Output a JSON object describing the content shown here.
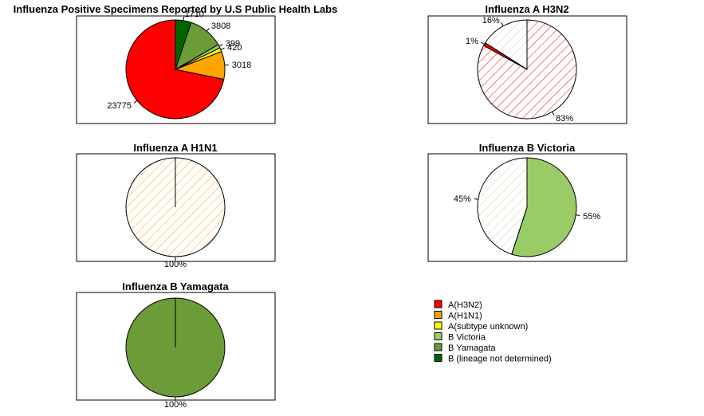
{
  "colors": {
    "A(H3N2)": "#ff0000",
    "A(H1N1)": "#ffa500",
    "A(subtype unknown)": "#ffff00",
    "B Victoria": "#99cc66",
    "B Yamagata": "#6b9c38",
    "B (lineage not determined)": "#006400"
  },
  "legend": {
    "items": [
      "A(H3N2)",
      "A(H1N1)",
      "A(subtype unknown)",
      "B Victoria",
      "B Yamagata",
      "B (lineage not determined)"
    ]
  },
  "chart_data": [
    {
      "type": "pie",
      "title": "Influenza Positive Specimens Reported by U.S Public Health Labs",
      "labels": [
        "A(H3N2)",
        "A(H1N1)",
        "A(subtype unknown)",
        "B Victoria",
        "B Yamagata",
        "B (lineage not determined)"
      ],
      "values": [
        23775,
        3018,
        420,
        399,
        3808,
        1710
      ],
      "slice_labels": [
        "23775",
        "3018",
        "420",
        "399",
        "3808",
        "1710"
      ],
      "fill": "solid"
    },
    {
      "type": "pie",
      "title": "Influenza A H3N2",
      "labels": [
        "Influenza A H3N2",
        "A(H3N2) share 1%",
        "Influenza A H3N2 other"
      ],
      "values": [
        83,
        1,
        16
      ],
      "slice_labels": [
        "83%",
        "1%",
        "16%"
      ],
      "slice_colors": [
        "#ff0000",
        "#ff0000",
        "#ffffff"
      ],
      "slice_fill": [
        "hatch",
        "solid",
        "hatch"
      ],
      "fill": "mixed"
    },
    {
      "type": "pie",
      "title": "Influenza A H1N1",
      "labels": [
        "Influenza A H1N1"
      ],
      "values": [
        100
      ],
      "slice_labels": [
        "100%"
      ],
      "slice_colors": [
        "#ffa500"
      ],
      "slice_fill": [
        "hatch"
      ],
      "fill": "hatch"
    },
    {
      "type": "pie",
      "title": "Influenza B Victoria",
      "labels": [
        "B Victoria 55%",
        "B Victoria 45%"
      ],
      "values": [
        55,
        45
      ],
      "slice_labels": [
        "55%",
        "45%"
      ],
      "slice_colors": [
        "#99cc66",
        "#99cc66"
      ],
      "slice_fill": [
        "solid",
        "hatch"
      ],
      "fill": "mixed"
    },
    {
      "type": "pie",
      "title": "Influenza B Yamagata",
      "labels": [
        "Influenza B Yamagata"
      ],
      "values": [
        100
      ],
      "slice_labels": [
        "100%"
      ],
      "slice_colors": [
        "#6b9c38"
      ],
      "slice_fill": [
        "solid"
      ],
      "fill": "solid"
    }
  ]
}
